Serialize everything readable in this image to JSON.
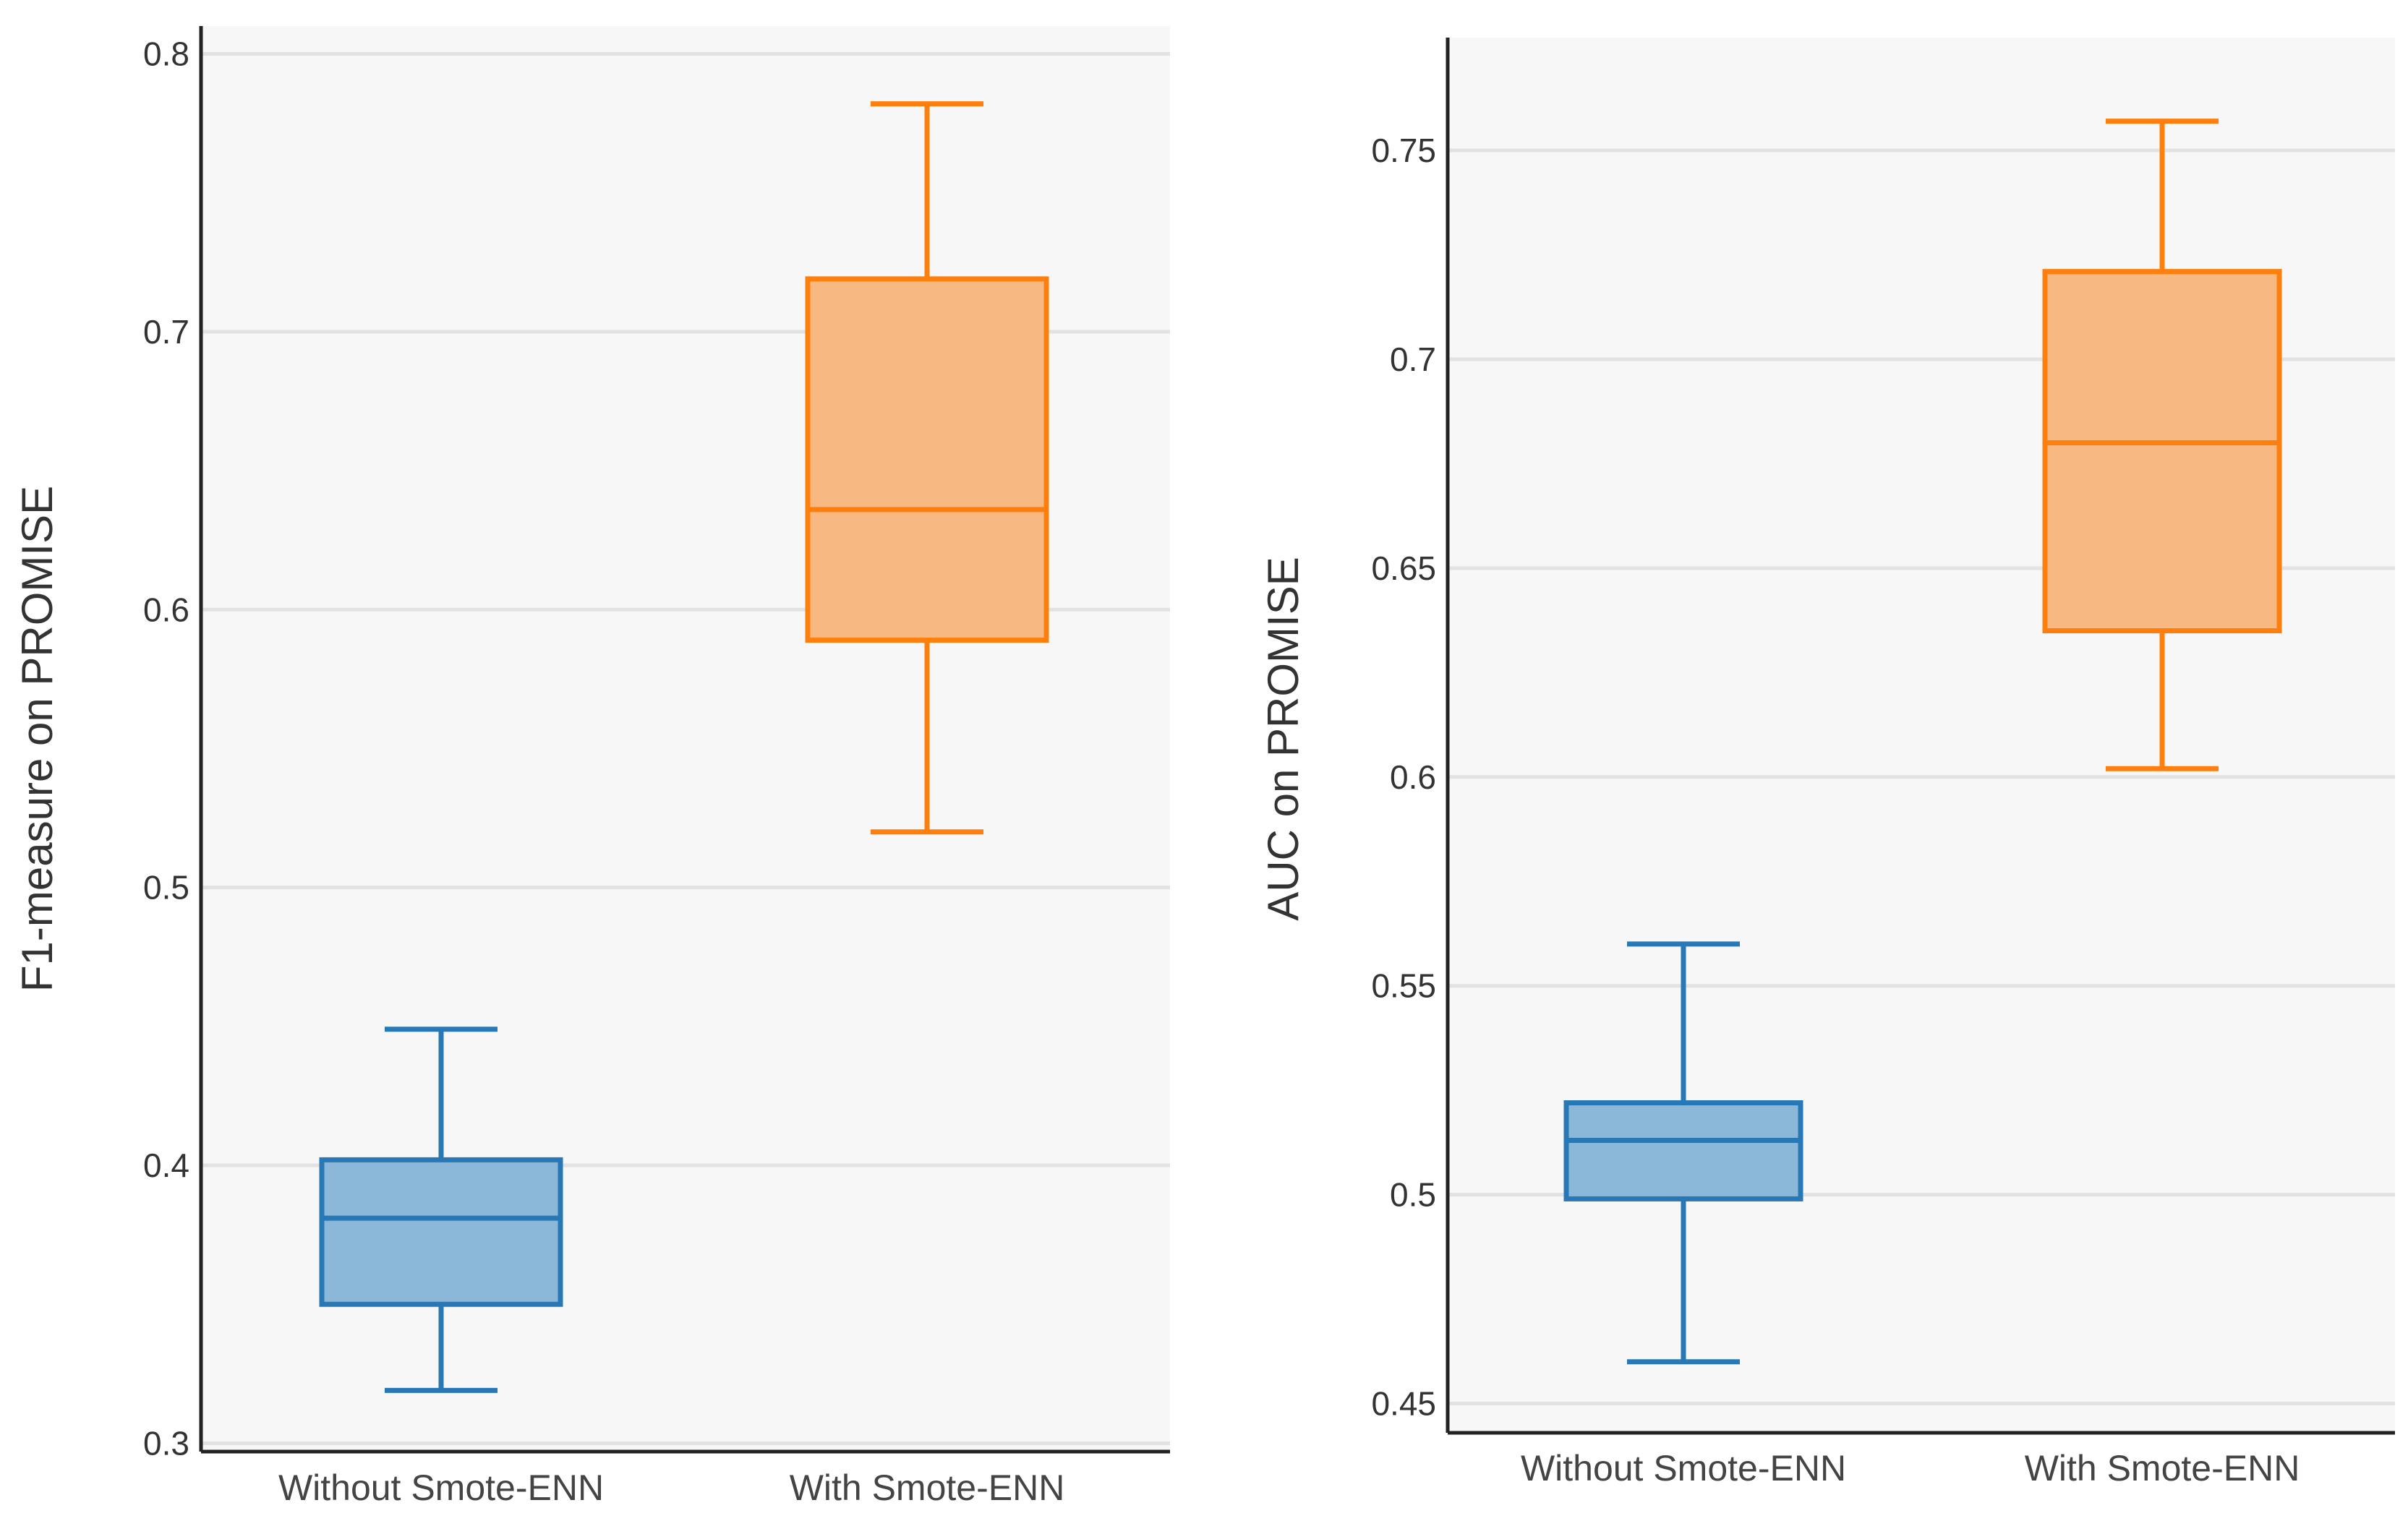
{
  "colors": {
    "without_line": "#2878b5",
    "without_fill": "#8bb7d8",
    "with_line": "#ff7f0e",
    "with_fill": "#f8b882"
  },
  "chart_data": [
    {
      "type": "box",
      "ylabel": "F1-measure on PROMISE",
      "ylim": [
        0.297,
        0.81
      ],
      "yticks": [
        0.3,
        0.4,
        0.5,
        0.6,
        0.7,
        0.8
      ],
      "ytick_labels": [
        "0.3",
        "0.4",
        "0.5",
        "0.6",
        "0.7",
        "0.8"
      ],
      "categories": [
        "Without Smote-ENN",
        "With Smote-ENN"
      ],
      "grid": true,
      "boxes": [
        {
          "category": "Without Smote-ENN",
          "min": 0.319,
          "q1": 0.35,
          "median": 0.381,
          "q3": 0.402,
          "max": 0.449
        },
        {
          "category": "With Smote-ENN",
          "min": 0.52,
          "q1": 0.589,
          "median": 0.636,
          "q3": 0.719,
          "max": 0.782
        }
      ]
    },
    {
      "type": "box",
      "ylabel": "AUC on PROMISE",
      "ylim": [
        0.443,
        0.777
      ],
      "yticks": [
        0.45,
        0.5,
        0.55,
        0.6,
        0.65,
        0.7,
        0.75
      ],
      "ytick_labels": [
        "0.45",
        "0.5",
        "0.55",
        "0.6",
        "0.65",
        "0.7",
        "0.75"
      ],
      "categories": [
        "Without Smote-ENN",
        "With Smote-ENN"
      ],
      "grid": true,
      "boxes": [
        {
          "category": "Without Smote-ENN",
          "min": 0.46,
          "q1": 0.499,
          "median": 0.513,
          "q3": 0.522,
          "max": 0.56
        },
        {
          "category": "With Smote-ENN",
          "min": 0.602,
          "q1": 0.635,
          "median": 0.68,
          "q3": 0.721,
          "max": 0.757
        }
      ]
    }
  ]
}
